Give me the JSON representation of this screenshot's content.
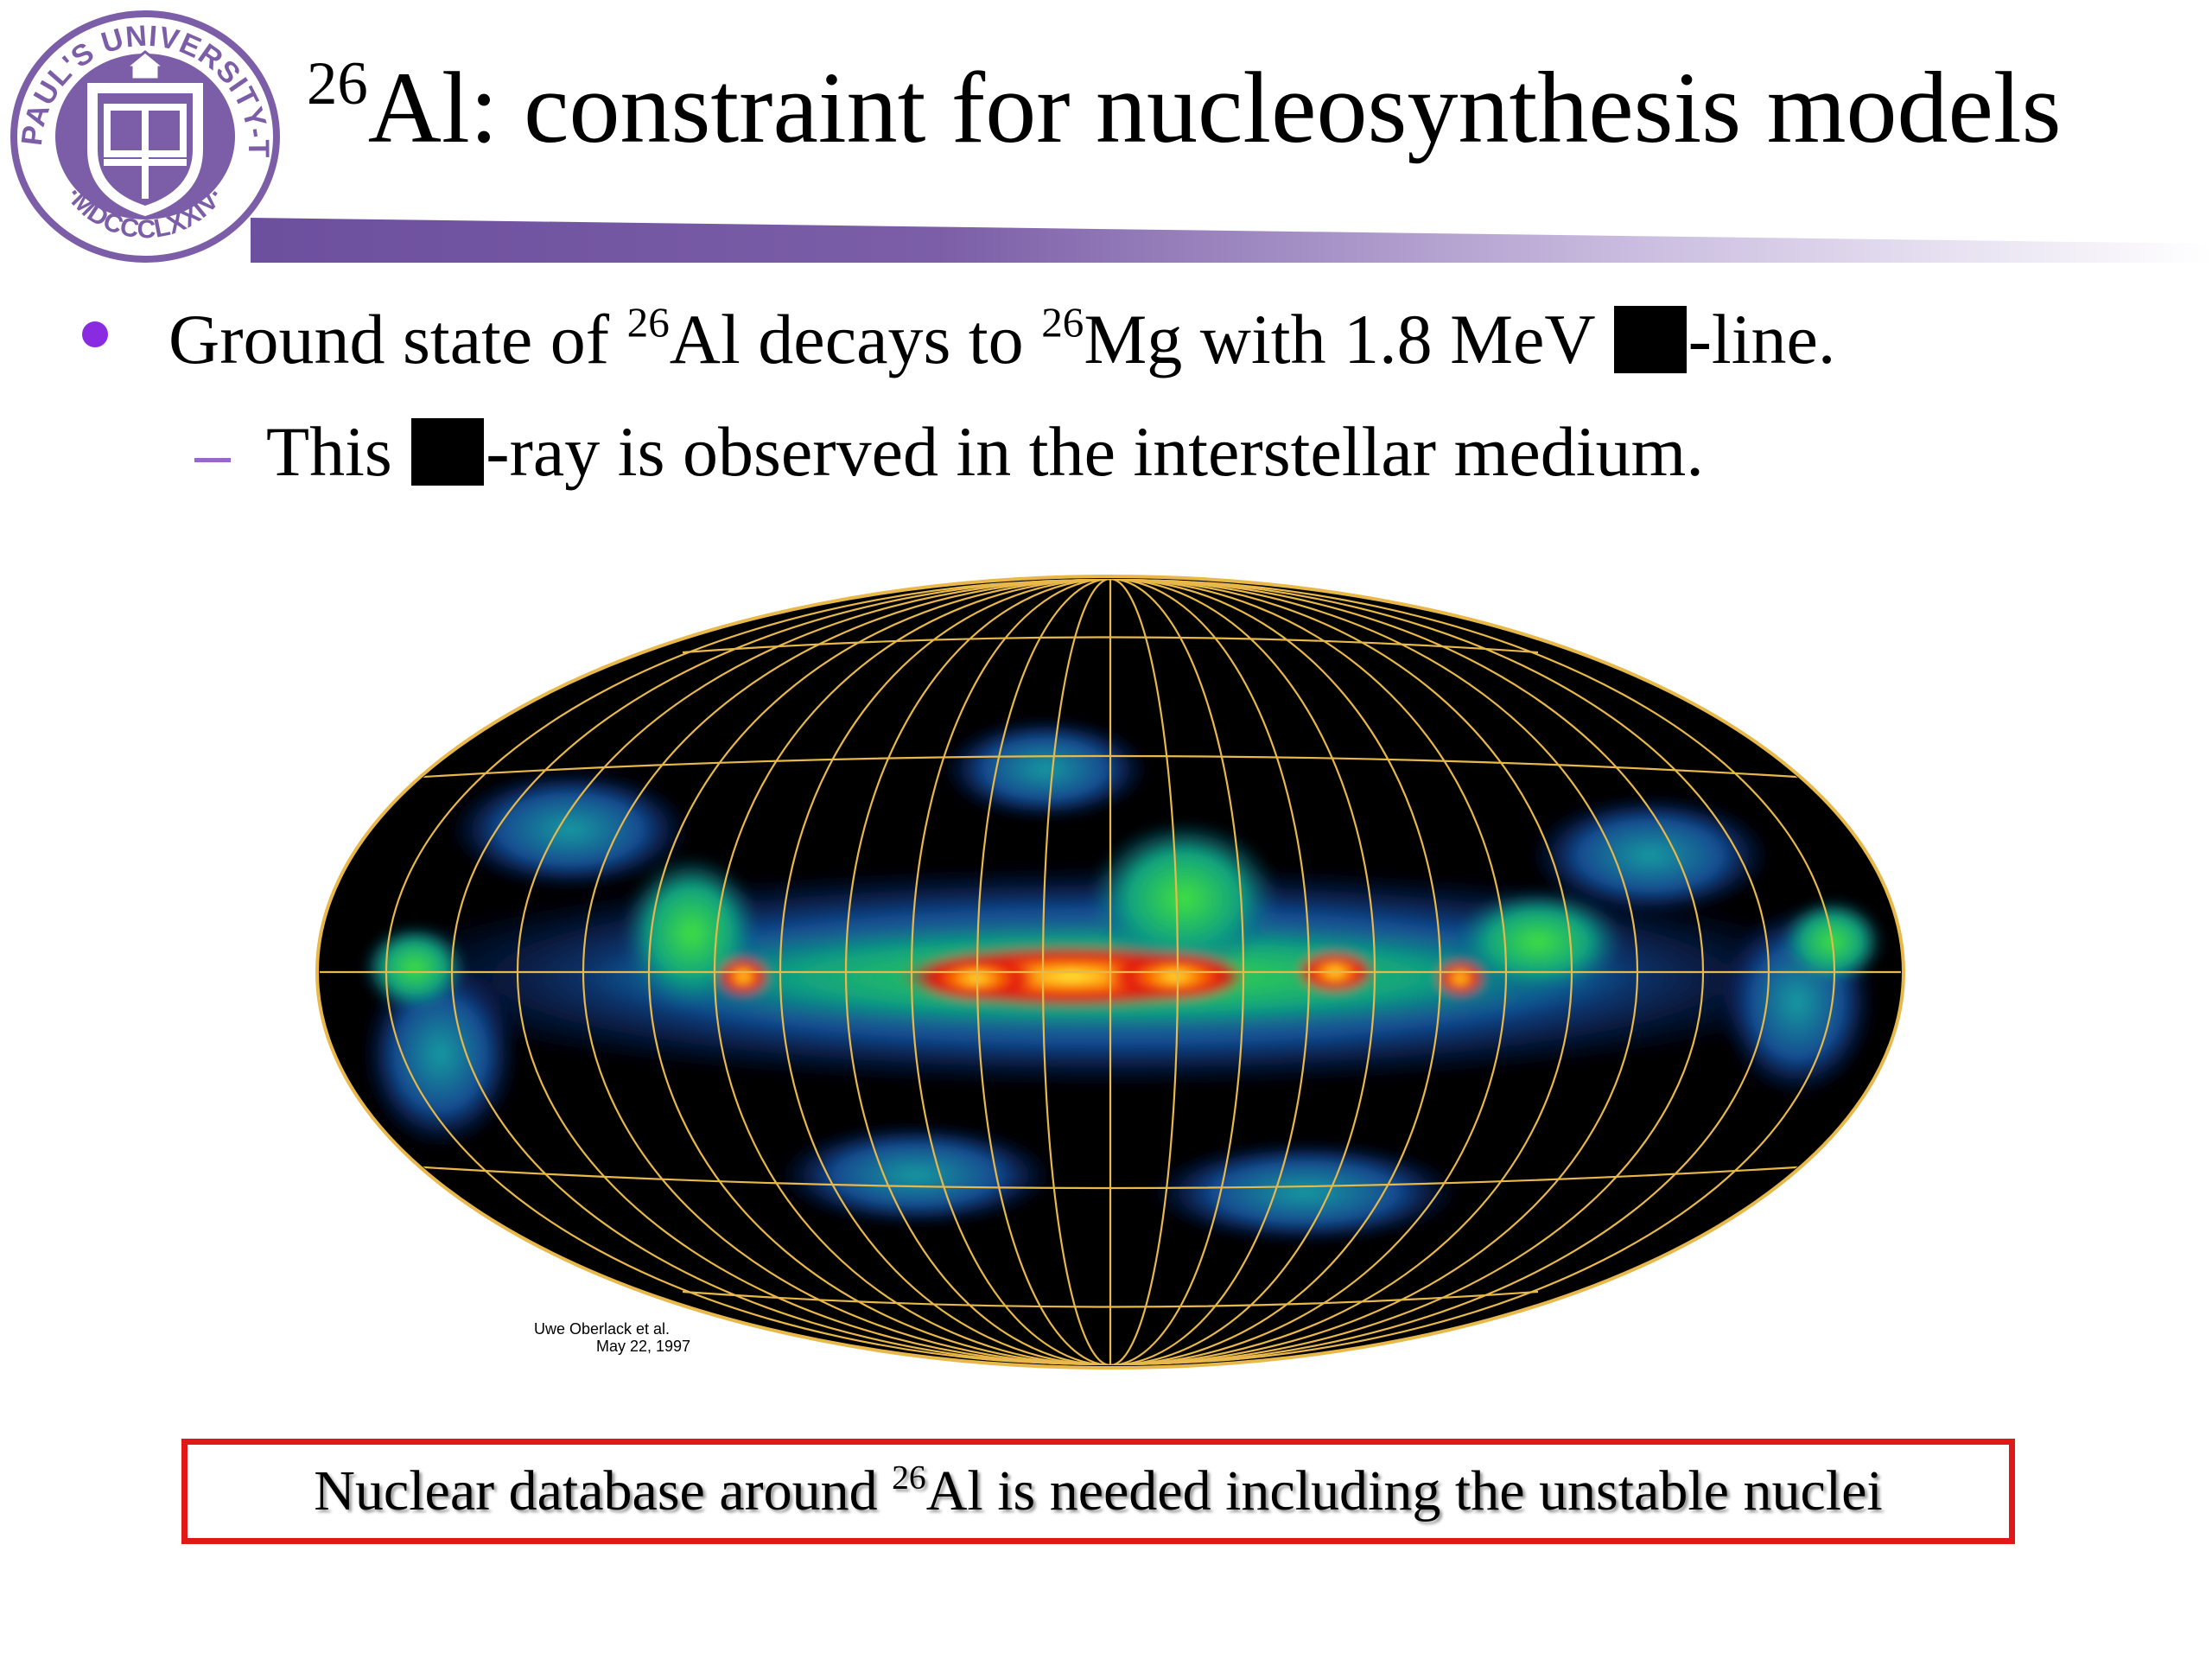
{
  "logo": {
    "ring_text_top": "SAINT PAUL'S UNIVERSITY-TOKYO",
    "ring_text_bottom": "MDCCCLXXIV",
    "color": "#7b5ea7"
  },
  "title": {
    "sup": "26",
    "text": "Al: constraint for nucleosynthesis models"
  },
  "bullets": [
    {
      "pre": "Ground state of ",
      "sup1": "26",
      "mid": "Al decays to ",
      "sup2": "26",
      "post_a": "Mg with 1.8 MeV ",
      "post_b": "-line."
    },
    {
      "pre": "This ",
      "post": "-ray is observed in the interstellar medium."
    }
  ],
  "figure": {
    "credit_line1": "Uwe Oberlack et al.",
    "credit_line2": "May 22, 1997"
  },
  "callout": {
    "pre": "Nuclear database around ",
    "sup": "26",
    "post": "Al is needed including the unstable nuclei",
    "border_color": "#e01818"
  },
  "colors": {
    "accent_purple": "#7b5ea7",
    "bullet": "#8a2be2",
    "grid": "#e8b84a"
  }
}
